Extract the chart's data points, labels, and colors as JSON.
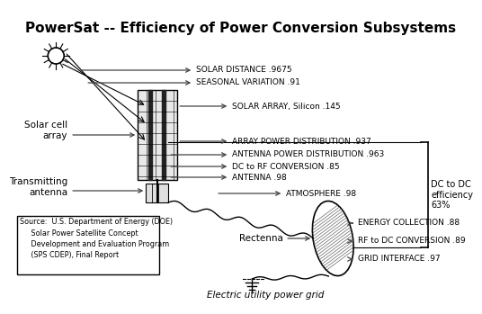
{
  "title": "PowerSat -- Efficiency of Power Conversion Subsystems",
  "title_fontsize": 11,
  "title_fontweight": "bold",
  "bg_color": "#ffffff",
  "labels": {
    "solar_distance": "SOLAR DISTANCE .9675",
    "seasonal_variation": "SEASONAL VARIATION .91",
    "solar_array": "SOLAR ARRAY, Silicon .145",
    "array_power_dist": "ARRAY POWER DISTRIBUTION .937",
    "antenna_power_dist": "ANTENNA POWER DISTRIBUTION .963",
    "dc_to_rf": "DC to RF CONVERSION .85",
    "antenna": "ANTENNA .98",
    "atmosphere": "ATMOSPHERE .98",
    "energy_collection": "ENERGY COLLECTION .88",
    "rf_to_dc": "RF to DC CONVERSION .89",
    "grid_interface": "GRID INTERFACE .97",
    "solar_cell_array": "Solar cell\narray",
    "transmitting_antenna": "Transmitting\nantenna",
    "rectenna": "Rectenna",
    "electric_grid": "Electric utility power grid",
    "dc_to_dc": "DC to DC\nefficiency\n63%",
    "source": "Source:  U.S. Department of Energy (DOE)\n     Solar Power Satellite Concept\n     Development and Evaluation Program\n     (SPS CDEP), Final Report"
  },
  "colors": {
    "text": "#000000",
    "arrow": "#555555",
    "line": "#000000"
  },
  "label_fontsize": 6.5,
  "small_fontsize": 7.5,
  "source_fontsize": 5.8
}
